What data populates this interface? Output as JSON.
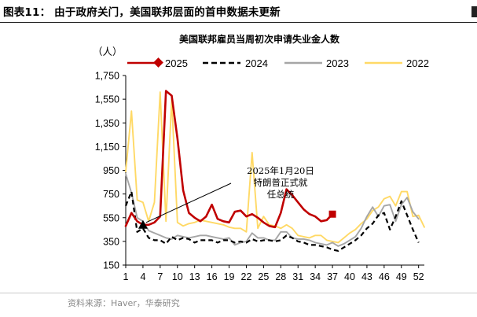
{
  "figure_title": "图表11：  由于政府关门，美国联邦层面的首申数据未更新",
  "source": "资料来源：Haver，华泰研究",
  "chart_data": {
    "type": "line",
    "title": "美国联邦雇员当周初次申请失业金人数",
    "unit_label": "（人）",
    "ylim": [
      150,
      1750
    ],
    "yticks": [
      150,
      350,
      550,
      750,
      950,
      1150,
      1350,
      1550,
      1750
    ],
    "yticks_text": [
      "150",
      "350",
      "550",
      "750",
      "950",
      "1,150",
      "1,350",
      "1,550",
      "1,750"
    ],
    "xlim": [
      1,
      53
    ],
    "xticks": [
      1,
      4,
      7,
      10,
      13,
      16,
      19,
      22,
      25,
      28,
      31,
      34,
      37,
      40,
      43,
      46,
      49,
      52
    ],
    "xlabel": "",
    "ylabel": "",
    "legend": [
      "2025",
      "2024",
      "2023",
      "2022"
    ],
    "colors": {
      "2025": "#C00000",
      "2024": "#000000",
      "2023": "#A6A6A6",
      "2022": "#FFD966"
    },
    "series": [
      {
        "name": "2025",
        "x": [
          1,
          2,
          3,
          4,
          5,
          6,
          7,
          8,
          9,
          10,
          11,
          12,
          13,
          14,
          15,
          16,
          17,
          18,
          19,
          20,
          21,
          22,
          23,
          24,
          25,
          26,
          27,
          28,
          29,
          30,
          31,
          32,
          33,
          34,
          35,
          36,
          37
        ],
        "values": [
          480,
          590,
          520,
          490,
          490,
          510,
          560,
          1620,
          1580,
          1220,
          780,
          590,
          550,
          520,
          560,
          660,
          540,
          520,
          510,
          600,
          610,
          560,
          580,
          550,
          510,
          480,
          470,
          590,
          790,
          740,
          680,
          620,
          580,
          560,
          520,
          530,
          580
        ]
      },
      {
        "name": "2024",
        "x": [
          1,
          2,
          3,
          4,
          5,
          6,
          7,
          8,
          9,
          10,
          11,
          12,
          13,
          14,
          15,
          16,
          17,
          18,
          19,
          20,
          21,
          22,
          23,
          24,
          25,
          26,
          27,
          28,
          29,
          30,
          31,
          32,
          33,
          34,
          35,
          36,
          37,
          38,
          39,
          40,
          41,
          42,
          43,
          44,
          45,
          46,
          47,
          48,
          49,
          50,
          51,
          52
        ],
        "values": [
          650,
          770,
          430,
          460,
          380,
          360,
          360,
          330,
          390,
          360,
          380,
          370,
          340,
          360,
          360,
          360,
          340,
          360,
          360,
          340,
          350,
          340,
          370,
          350,
          360,
          360,
          350,
          360,
          400,
          380,
          350,
          340,
          320,
          320,
          310,
          300,
          280,
          270,
          300,
          330,
          360,
          400,
          460,
          500,
          570,
          590,
          450,
          560,
          690,
          570,
          450,
          340
        ]
      },
      {
        "name": "2023",
        "x": [
          1,
          2,
          3,
          4,
          5,
          6,
          7,
          8,
          9,
          10,
          11,
          12,
          13,
          14,
          15,
          16,
          17,
          18,
          19,
          20,
          21,
          22,
          23,
          24,
          25,
          26,
          27,
          28,
          29,
          30,
          31,
          32,
          33,
          34,
          35,
          36,
          37,
          38,
          39,
          40,
          41,
          42,
          43,
          44,
          45,
          46,
          47,
          48,
          49,
          50,
          51,
          52
        ],
        "values": [
          920,
          760,
          550,
          520,
          440,
          420,
          400,
          380,
          370,
          400,
          390,
          380,
          390,
          400,
          400,
          390,
          380,
          370,
          380,
          320,
          340,
          350,
          420,
          380,
          380,
          360,
          360,
          430,
          430,
          380,
          370,
          370,
          360,
          340,
          330,
          320,
          340,
          310,
          330,
          360,
          390,
          460,
          560,
          640,
          560,
          650,
          660,
          520,
          660,
          720,
          600,
          540
        ]
      },
      {
        "name": "2022",
        "x": [
          1,
          2,
          3,
          4,
          5,
          6,
          7,
          8,
          9,
          10,
          11,
          12,
          13,
          14,
          15,
          16,
          17,
          18,
          19,
          20,
          21,
          22,
          23,
          24,
          25,
          26,
          27,
          28,
          29,
          30,
          31,
          32,
          33,
          34,
          35,
          36,
          37,
          38,
          39,
          40,
          41,
          42,
          43,
          44,
          45,
          46,
          47,
          48,
          49,
          50,
          51,
          52,
          53
        ],
        "values": [
          940,
          1450,
          700,
          680,
          520,
          680,
          1610,
          520,
          1550,
          510,
          480,
          500,
          510,
          530,
          520,
          510,
          500,
          490,
          470,
          460,
          460,
          430,
          1100,
          460,
          560,
          490,
          480,
          460,
          490,
          460,
          400,
          390,
          380,
          400,
          400,
          360,
          350,
          340,
          380,
          420,
          450,
          500,
          540,
          610,
          640,
          710,
          730,
          650,
          770,
          770,
          560,
          570,
          470
        ]
      }
    ],
    "highlight_points": [
      {
        "series": "2025",
        "x": 4,
        "y": 490,
        "marker": "triangle",
        "color": "#000000"
      },
      {
        "series": "2025",
        "x": 37,
        "y": 580,
        "marker": "square",
        "color": "#C00000"
      }
    ],
    "annotations": [
      {
        "lines": [
          "2025年1月20日",
          "特朗普正式就",
          "任总统"
        ],
        "arrow_to": {
          "x": 4,
          "y": 490
        }
      }
    ]
  }
}
